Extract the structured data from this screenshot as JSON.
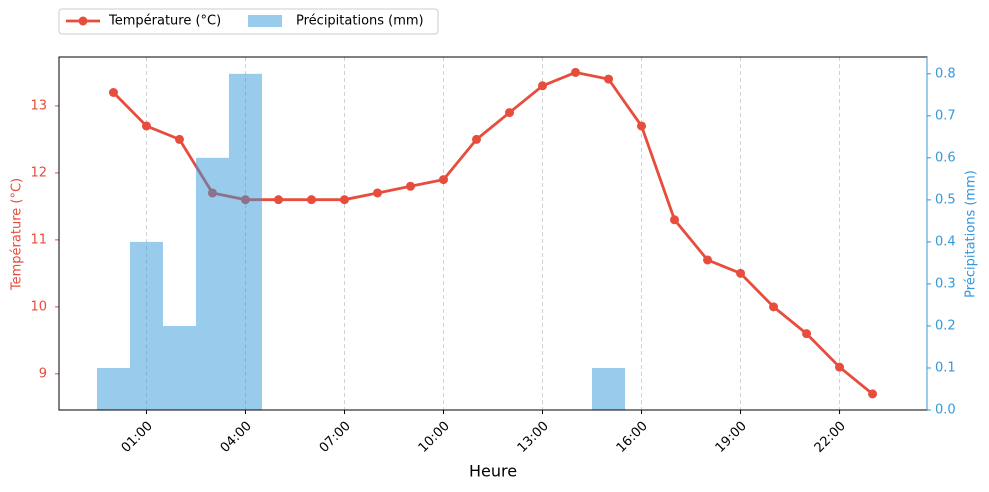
{
  "chart_data": {
    "type": "line-bar",
    "x": [
      0,
      1,
      2,
      3,
      4,
      5,
      6,
      7,
      8,
      9,
      10,
      11,
      12,
      13,
      14,
      15,
      16,
      17,
      18,
      19,
      20,
      21,
      22,
      23
    ],
    "xlim": [
      -1.65,
      24.65
    ],
    "xticks": [
      {
        "value": 1,
        "label": "01:00"
      },
      {
        "value": 4,
        "label": "04:00"
      },
      {
        "value": 7,
        "label": "07:00"
      },
      {
        "value": 10,
        "label": "10:00"
      },
      {
        "value": 13,
        "label": "13:00"
      },
      {
        "value": 16,
        "label": "16:00"
      },
      {
        "value": 19,
        "label": "19:00"
      },
      {
        "value": 22,
        "label": "22:00"
      }
    ],
    "xlabel": "Heure",
    "ylabel": "Température (°C)",
    "y2label": "Précipitations (mm)",
    "ylim": [
      8.46,
      13.73
    ],
    "yticks": [
      9,
      10,
      11,
      12,
      13
    ],
    "y2lim": [
      0,
      0.84
    ],
    "y2ticks": [
      {
        "value": 0,
        "label": "0.0"
      },
      0.1,
      0.2,
      0.3,
      0.4,
      0.5,
      0.6,
      0.7,
      0.8
    ],
    "grid": true,
    "series": [
      {
        "name": "Température (°C)",
        "type": "line",
        "color": "#e74c3c",
        "values": [
          13.2,
          12.7,
          12.5,
          11.7,
          11.6,
          11.6,
          11.6,
          11.6,
          11.7,
          11.8,
          11.9,
          12.5,
          12.9,
          13.3,
          13.5,
          13.4,
          12.7,
          11.3,
          10.7,
          10.5,
          10.0,
          9.6,
          9.1,
          8.7
        ]
      },
      {
        "name": "Précipitations (mm)",
        "type": "bar",
        "axis": "y2",
        "color": "#3498db",
        "values": [
          0.1,
          0.4,
          0.2,
          0.6,
          0.8,
          0,
          0,
          0,
          0,
          0,
          0,
          0,
          0,
          0,
          0,
          0.1,
          0,
          0,
          0,
          0,
          0,
          0,
          0,
          0
        ]
      }
    ]
  }
}
